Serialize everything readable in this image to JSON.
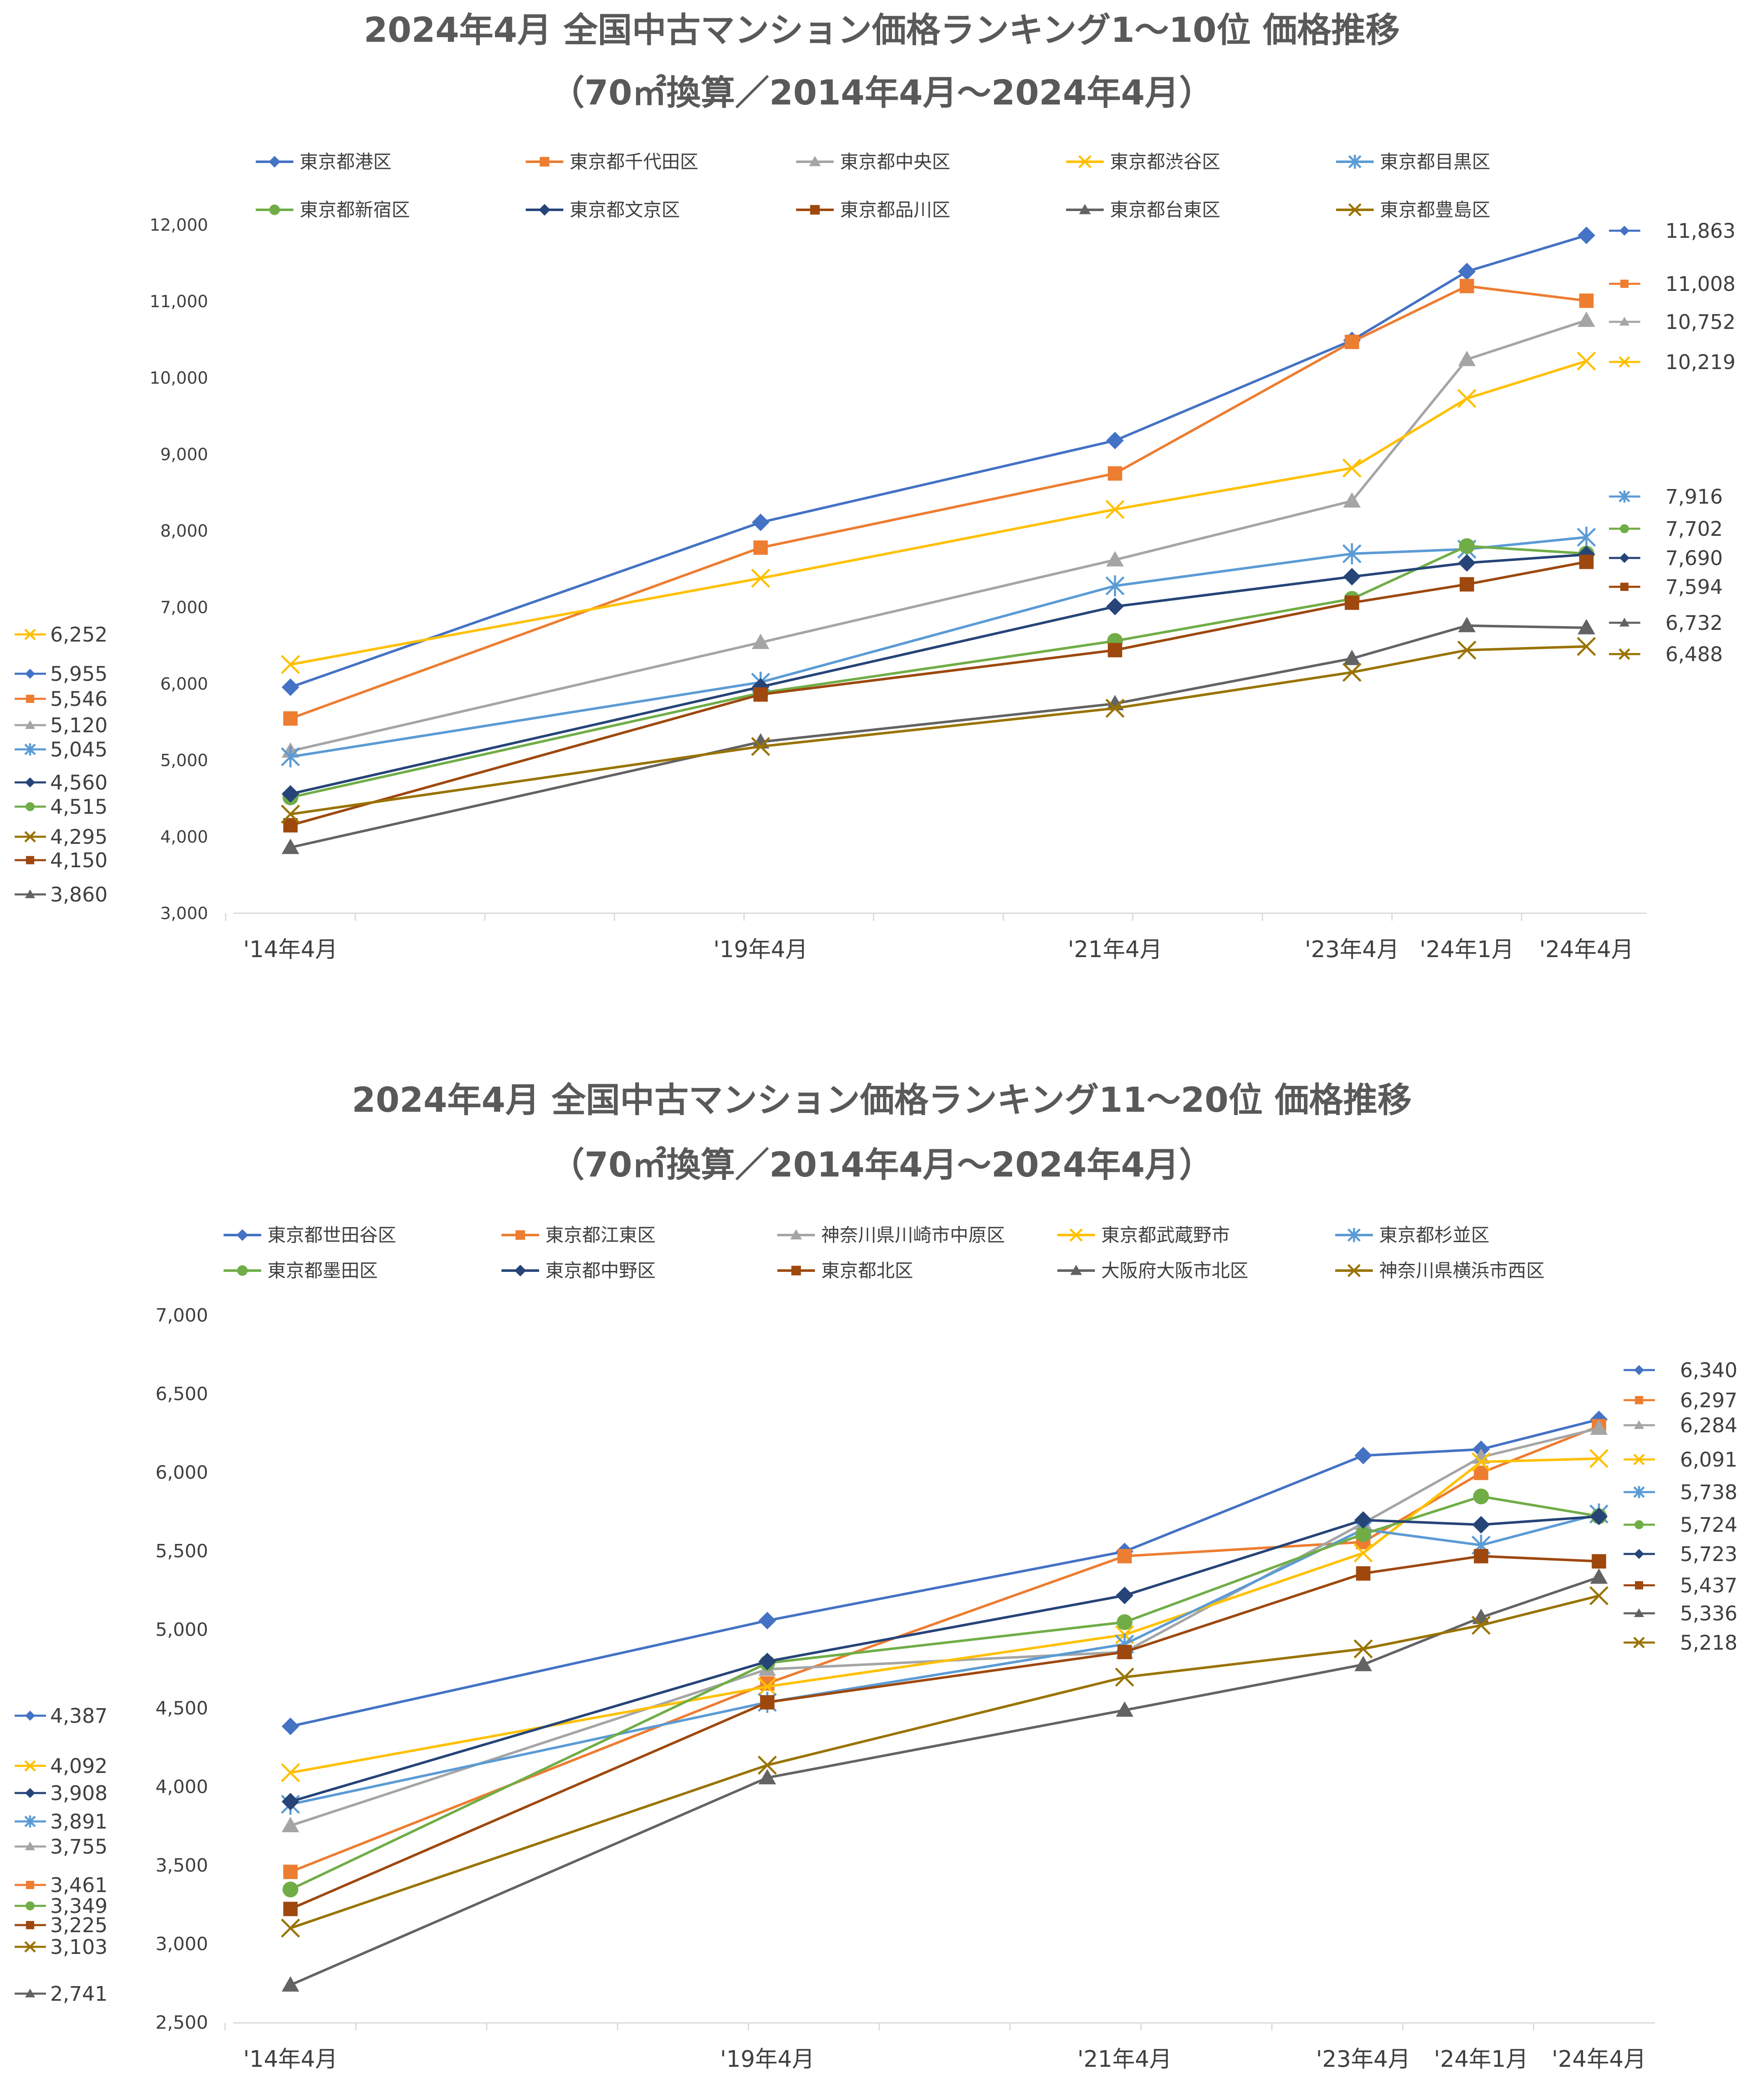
{
  "chart_data": [
    {
      "type": "line",
      "title": "2024年4月 全国中古マンション価格ランキング1～10位 価格推移",
      "subtitle": "（70㎡換算／2014年4月～2024年4月）",
      "categories": [
        "'14年4月",
        "'19年4月",
        "'21年4月",
        "'23年4月",
        "'24年1月",
        "'24年4月"
      ],
      "x_positions": [
        0,
        5,
        7,
        9,
        9.75,
        10
      ],
      "yticks": [
        "3,000",
        "4,000",
        "5,000",
        "6,000",
        "7,000",
        "8,000",
        "9,000",
        "10,000",
        "11,000",
        "12,000"
      ],
      "ylim": [
        3000,
        12000
      ],
      "series": [
        {
          "name": "東京都港区",
          "color": "#4472C4",
          "marker": "diamond",
          "values": [
            5955,
            8110,
            9180,
            10490,
            11390,
            11863
          ],
          "start_label": "5,955",
          "end_label": "11,863"
        },
        {
          "name": "東京都千代田区",
          "color": "#ED7D31",
          "marker": "square",
          "values": [
            5546,
            7780,
            8750,
            10470,
            11200,
            11008
          ],
          "start_label": "5,546",
          "end_label": "11,008"
        },
        {
          "name": "東京都中央区",
          "color": "#A5A5A5",
          "marker": "triangle",
          "values": [
            5120,
            6540,
            7620,
            8390,
            10240,
            10752
          ],
          "start_label": "5,120",
          "end_label": "10,752"
        },
        {
          "name": "東京都渋谷区",
          "color": "#FFC000",
          "marker": "x",
          "values": [
            6252,
            7380,
            8280,
            8820,
            9730,
            10219
          ],
          "start_label": "6,252",
          "end_label": "10,219"
        },
        {
          "name": "東京都目黒区",
          "color": "#5B9BD5",
          "marker": "star",
          "values": [
            5045,
            6020,
            7280,
            7700,
            7760,
            7916
          ],
          "start_label": "5,045",
          "end_label": "7,916"
        },
        {
          "name": "東京都新宿区",
          "color": "#70AD47",
          "marker": "circle",
          "values": [
            4515,
            5880,
            6560,
            7110,
            7800,
            7702
          ],
          "start_label": "4,515",
          "end_label": "7,702"
        },
        {
          "name": "東京都文京区",
          "color": "#264478",
          "marker": "diamond",
          "values": [
            4560,
            5960,
            7010,
            7400,
            7580,
            7690
          ],
          "start_label": "4,560",
          "end_label": "7,690"
        },
        {
          "name": "東京都品川区",
          "color": "#9E480E",
          "marker": "square",
          "values": [
            4150,
            5860,
            6440,
            7060,
            7300,
            7594
          ],
          "start_label": "4,150",
          "end_label": "7,594"
        },
        {
          "name": "東京都台東区",
          "color": "#636363",
          "marker": "triangle",
          "values": [
            3860,
            5240,
            5740,
            6330,
            6760,
            6732
          ],
          "start_label": "3,860",
          "end_label": "6,732"
        },
        {
          "name": "東京都豊島区",
          "color": "#997300",
          "marker": "x",
          "values": [
            4295,
            5180,
            5680,
            6150,
            6440,
            6488
          ],
          "start_label": "4,295",
          "end_label": "6,488"
        }
      ]
    },
    {
      "type": "line",
      "title": "2024年4月 全国中古マンション価格ランキング11～20位 価格推移",
      "subtitle": "（70㎡換算／2014年4月～2024年4月）",
      "categories": [
        "'14年4月",
        "'19年4月",
        "'21年4月",
        "'23年4月",
        "'24年1月",
        "'24年4月"
      ],
      "x_positions": [
        0,
        5,
        7,
        9,
        9.75,
        10
      ],
      "yticks": [
        "2,500",
        "3,000",
        "3,500",
        "4,000",
        "4,500",
        "5,000",
        "5,500",
        "6,000",
        "6,500",
        "7,000"
      ],
      "ylim": [
        2500,
        7000
      ],
      "series": [
        {
          "name": "東京都世田谷区",
          "color": "#4472C4",
          "marker": "diamond",
          "values": [
            4387,
            5060,
            5500,
            6110,
            6150,
            6340
          ],
          "start_label": "4,387",
          "end_label": "6,340"
        },
        {
          "name": "東京都江東区",
          "color": "#ED7D31",
          "marker": "square",
          "values": [
            3461,
            4660,
            5470,
            5560,
            6000,
            6297
          ],
          "start_label": "3,461",
          "end_label": "6,297"
        },
        {
          "name": "神奈川県川崎市中原区",
          "color": "#A5A5A5",
          "marker": "triangle",
          "values": [
            3755,
            4750,
            4860,
            5680,
            6100,
            6284
          ],
          "start_label": "3,755",
          "end_label": "6,284"
        },
        {
          "name": "東京都武蔵野市",
          "color": "#FFC000",
          "marker": "x",
          "values": [
            4092,
            4640,
            4970,
            5490,
            6070,
            6091
          ],
          "start_label": "4,092",
          "end_label": "6,091"
        },
        {
          "name": "東京都杉並区",
          "color": "#5B9BD5",
          "marker": "star",
          "values": [
            3891,
            4540,
            4910,
            5640,
            5540,
            5738
          ],
          "start_label": "3,891",
          "end_label": "5,738"
        },
        {
          "name": "東京都墨田区",
          "color": "#70AD47",
          "marker": "circle",
          "values": [
            3349,
            4790,
            5050,
            5610,
            5850,
            5724
          ],
          "start_label": "3,349",
          "end_label": "5,724"
        },
        {
          "name": "東京都中野区",
          "color": "#264478",
          "marker": "diamond",
          "values": [
            3908,
            4800,
            5220,
            5700,
            5670,
            5723
          ],
          "start_label": "3,908",
          "end_label": "5,723"
        },
        {
          "name": "東京都北区",
          "color": "#9E480E",
          "marker": "square",
          "values": [
            3225,
            4540,
            4860,
            5360,
            5470,
            5437
          ],
          "start_label": "3,225",
          "end_label": "5,437"
        },
        {
          "name": "大阪府大阪市北区",
          "color": "#636363",
          "marker": "triangle",
          "values": [
            2741,
            4060,
            4490,
            4780,
            5080,
            5336
          ],
          "start_label": "2,741",
          "end_label": "5,336"
        },
        {
          "name": "神奈川県横浜市西区",
          "color": "#997300",
          "marker": "x",
          "values": [
            3103,
            4140,
            4700,
            4880,
            5030,
            5218
          ],
          "start_label": "3,103",
          "end_label": "5,218"
        }
      ]
    }
  ]
}
